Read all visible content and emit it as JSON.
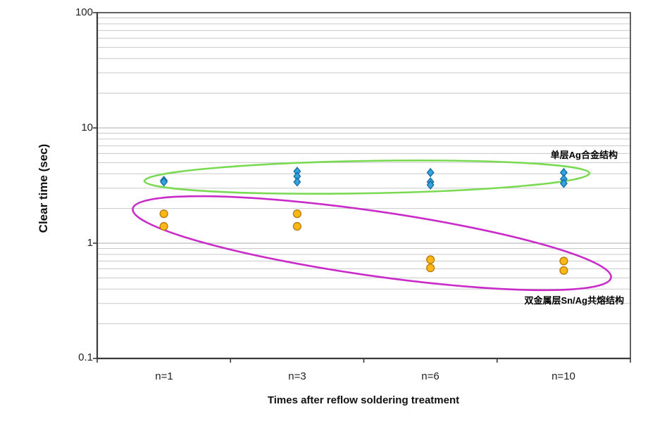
{
  "chart_data": {
    "type": "scatter",
    "title": "",
    "xlabel": "Times after reflow soldering treatment",
    "ylabel": "Clear time (sec)",
    "x_categories": [
      "n=1",
      "n=3",
      "n=6",
      "n=10"
    ],
    "y_axis": {
      "scale": "log",
      "min": 0.1,
      "max": 100,
      "tick_labels": [
        "100",
        "10",
        "1",
        "0.1"
      ],
      "unit": "sec"
    },
    "grid": {
      "minor_lines": true,
      "minor_color": "#c9c9c9",
      "major_color": "#ababab"
    },
    "legend_position": "none",
    "series": [
      {
        "name": "单层Ag合金结构",
        "marker": "diamond",
        "fill_color": "#35a3dc",
        "border_color": "#176fa8",
        "values_by_category": [
          [
            3.5,
            3.4
          ],
          [
            4.2,
            3.8,
            3.4
          ],
          [
            4.1,
            3.4,
            3.2
          ],
          [
            4.1,
            3.6,
            3.3
          ]
        ]
      },
      {
        "name": "双金属层Sn/Ag共熔结构",
        "marker": "circle",
        "fill_color": "#fcb813",
        "border_color": "#bd7c10",
        "values_by_category": [
          [
            1.8,
            1.4
          ],
          [
            1.8,
            1.4
          ],
          [
            0.72,
            0.61
          ],
          [
            0.7,
            0.58
          ]
        ]
      }
    ],
    "annotations": [
      {
        "text": "单层Ag合金结构",
        "refers_to": "blue diamond group"
      },
      {
        "text": "双金属层Sn/Ag共熔结构",
        "refers_to": "orange circle group"
      }
    ],
    "group_ellipses": [
      {
        "series": "单层Ag合金结构",
        "color": "#79da52"
      },
      {
        "series": "双金属层Sn/Ag共熔结构",
        "color": "#c92bc9"
      }
    ],
    "frame_color": "#3a3a3a"
  }
}
